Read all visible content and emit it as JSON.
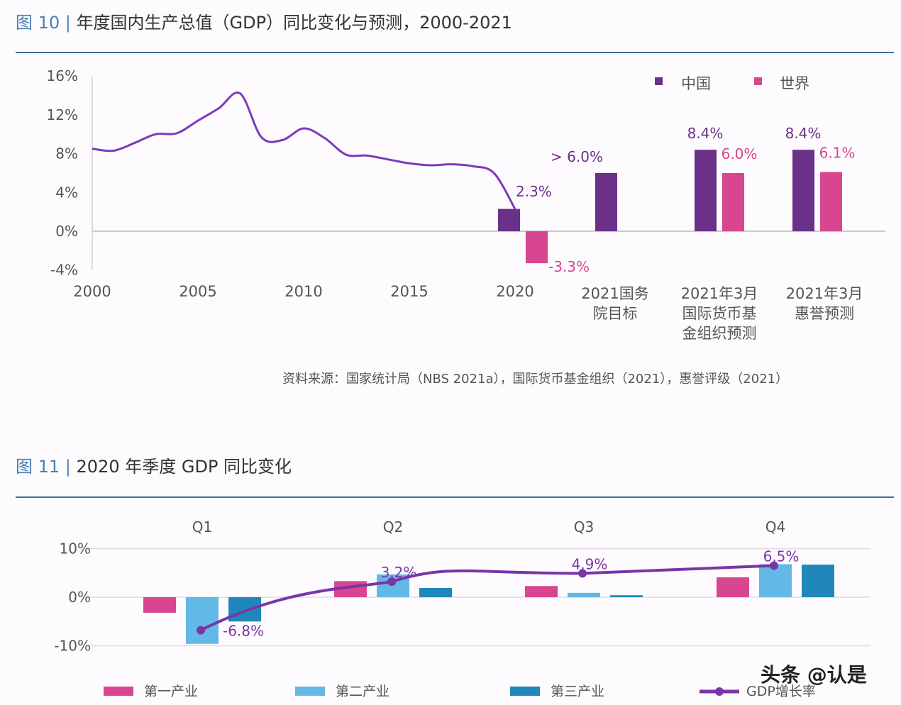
{
  "fig10": {
    "fig_label": "图 10 |",
    "title": "年度国内生产总值（GDP）同比变化与预测，2000-2021",
    "source": "资料来源：国家统计局（NBS 2021a），国际货币基金组织（2021），惠誉评级（2021）"
  },
  "fig11": {
    "fig_label": "图 11 |",
    "title": "2020 年季度 GDP 同比变化"
  },
  "watermark": "头条 @认是",
  "colors": {
    "china": "#6b3189",
    "world": "#d8468f",
    "line": "#7b3bbb",
    "primary": "#d8468f",
    "secondary": "#63b9e6",
    "tertiary": "#1f87ba",
    "gdp_line": "#7a35a6",
    "title_accent": "#4a7fb5"
  },
  "chart_data": [
    {
      "type": "line+bar",
      "ylim": [
        -4,
        16
      ],
      "yticks": [
        "16%",
        "12%",
        "8%",
        "4%",
        "0%",
        "-4%"
      ],
      "ytick_values": [
        16,
        12,
        8,
        4,
        0,
        -4
      ],
      "xticks": [
        "2000",
        "2005",
        "2010",
        "2015",
        "2020"
      ],
      "grid": false,
      "legend": {
        "position": "top-right",
        "items": [
          "中国",
          "世界"
        ]
      },
      "line": {
        "x": [
          2000,
          2001,
          2002,
          2003,
          2004,
          2005,
          2006,
          2007,
          2008,
          2009,
          2010,
          2011,
          2012,
          2013,
          2014,
          2015,
          2016,
          2017,
          2018,
          2019,
          2020
        ],
        "y": [
          8.5,
          8.3,
          9.1,
          10.0,
          10.1,
          11.4,
          12.7,
          14.2,
          9.7,
          9.4,
          10.6,
          9.6,
          7.9,
          7.8,
          7.4,
          7.0,
          6.8,
          6.9,
          6.7,
          6.0,
          2.3
        ]
      },
      "bar_groups": [
        {
          "category": "2020",
          "china": 2.3,
          "world": -3.3,
          "china_label": "2.3%",
          "world_label": "-3.3%"
        },
        {
          "category": "2021国务院目标",
          "category_lines": [
            "2021国务",
            "院目标"
          ],
          "china": 6.0,
          "world": null,
          "china_label": "> 6.0%"
        },
        {
          "category": "2021年3月国际货币基金组织预测",
          "category_lines": [
            "2021年3月",
            "国际货币基",
            "金组织预测"
          ],
          "china": 8.4,
          "world": 6.0,
          "china_label": "8.4%",
          "world_label": "6.0%"
        },
        {
          "category": "2021年3月惠誉预测",
          "category_lines": [
            "2021年3月",
            "惠誉预测"
          ],
          "china": 8.4,
          "world": 6.1,
          "china_label": "8.4%",
          "world_label": "6.1%"
        }
      ]
    },
    {
      "type": "bar+line",
      "categories": [
        "Q1",
        "Q2",
        "Q3",
        "Q4"
      ],
      "ylim": [
        -10,
        10
      ],
      "yticks": [
        "10%",
        "0%",
        "-10%"
      ],
      "ytick_values": [
        10,
        0,
        -10
      ],
      "grid": true,
      "legend": {
        "position": "bottom",
        "items": [
          "第一产业",
          "第二产业",
          "第三产业",
          "GDP增长率"
        ]
      },
      "series": [
        {
          "name": "第一产业",
          "values": [
            -3.2,
            3.3,
            2.3,
            4.1
          ]
        },
        {
          "name": "第二产业",
          "values": [
            -9.6,
            4.7,
            0.9,
            6.8
          ]
        },
        {
          "name": "第三产业",
          "values": [
            -5.0,
            1.9,
            0.4,
            6.7
          ]
        },
        {
          "name": "GDP增长率",
          "type": "line",
          "values": [
            -6.8,
            3.2,
            4.9,
            6.5
          ],
          "labels": [
            "-6.8%",
            "3.2%",
            "4.9%",
            "6.5%"
          ]
        }
      ]
    }
  ]
}
